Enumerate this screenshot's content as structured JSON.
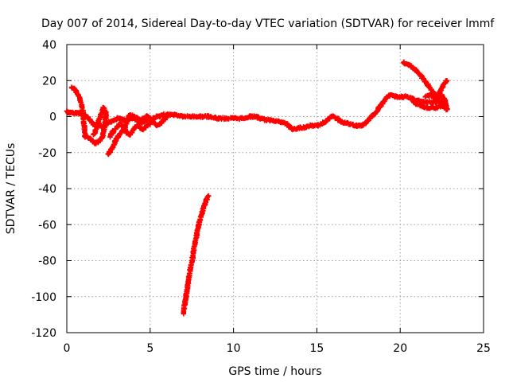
{
  "chart_data": {
    "type": "scatter",
    "title": "Day 007 of 2014, Sidereal Day-to-day VTEC variation (SDTVAR) for receiver lmmf",
    "xlabel": "GPS time / hours",
    "ylabel": "SDTVAR / TECUs",
    "xlim": [
      0,
      25
    ],
    "ylim": [
      -120,
      40
    ],
    "xticks": [
      "0",
      "5",
      "10",
      "15",
      "20",
      "25"
    ],
    "yticks": [
      "40",
      "20",
      "0",
      "-20",
      "-40",
      "-60",
      "-80",
      "-100",
      "-120"
    ],
    "grid": true,
    "marker": "plus",
    "color": "#ff0000",
    "series": [
      {
        "name": "main-trace",
        "points": [
          [
            0.0,
            3
          ],
          [
            0.2,
            2
          ],
          [
            0.4,
            2
          ],
          [
            0.6,
            2
          ],
          [
            0.8,
            2
          ],
          [
            1.0,
            1
          ],
          [
            1.2,
            0
          ],
          [
            1.4,
            -2
          ],
          [
            1.6,
            -4
          ],
          [
            1.8,
            -5
          ],
          [
            2.0,
            -5
          ],
          [
            2.2,
            -6
          ],
          [
            2.4,
            -4
          ],
          [
            2.6,
            -3
          ],
          [
            2.8,
            -2
          ],
          [
            3.0,
            -1
          ],
          [
            3.2,
            -1
          ],
          [
            3.4,
            -2
          ],
          [
            3.6,
            -2
          ],
          [
            3.8,
            -1
          ],
          [
            4.0,
            -1
          ],
          [
            4.2,
            -2
          ],
          [
            4.4,
            -3
          ],
          [
            4.6,
            -3
          ],
          [
            4.8,
            -2
          ],
          [
            5.0,
            -2
          ],
          [
            5.2,
            -1
          ],
          [
            5.4,
            0
          ],
          [
            5.6,
            0
          ],
          [
            5.8,
            1
          ],
          [
            6.0,
            1
          ],
          [
            6.2,
            1
          ],
          [
            6.5,
            1
          ],
          [
            7.0,
            0
          ],
          [
            7.5,
            0
          ],
          [
            8.0,
            0
          ],
          [
            8.5,
            0
          ],
          [
            9.0,
            -1
          ],
          [
            9.5,
            -1
          ],
          [
            10.0,
            -1
          ],
          [
            10.5,
            -1
          ],
          [
            11.0,
            0
          ],
          [
            11.3,
            0
          ],
          [
            11.6,
            -1
          ],
          [
            12.0,
            -2
          ],
          [
            12.4,
            -2
          ],
          [
            12.8,
            -3
          ],
          [
            13.2,
            -4
          ],
          [
            13.5,
            -7
          ],
          [
            13.8,
            -7
          ],
          [
            14.0,
            -6
          ],
          [
            14.3,
            -6
          ],
          [
            14.6,
            -5
          ],
          [
            15.0,
            -5
          ],
          [
            15.3,
            -4
          ],
          [
            15.6,
            -2
          ],
          [
            15.9,
            0
          ],
          [
            16.2,
            -1
          ],
          [
            16.5,
            -3
          ],
          [
            16.9,
            -4
          ],
          [
            17.3,
            -5
          ],
          [
            17.7,
            -5
          ],
          [
            18.0,
            -3
          ],
          [
            18.3,
            0
          ],
          [
            18.6,
            3
          ],
          [
            18.9,
            7
          ],
          [
            19.2,
            11
          ],
          [
            19.5,
            12
          ],
          [
            19.8,
            11
          ],
          [
            20.1,
            11
          ],
          [
            20.4,
            11
          ],
          [
            20.7,
            10
          ],
          [
            21.0,
            9
          ],
          [
            21.3,
            8
          ],
          [
            21.6,
            8
          ],
          [
            21.9,
            8
          ],
          [
            22.2,
            8
          ],
          [
            22.5,
            8
          ],
          [
            22.7,
            7
          ]
        ]
      },
      {
        "name": "early-loop-a",
        "points": [
          [
            0.3,
            16
          ],
          [
            0.5,
            15
          ],
          [
            0.7,
            12
          ],
          [
            0.9,
            6
          ],
          [
            1.0,
            0
          ],
          [
            1.05,
            -6
          ],
          [
            1.1,
            -11
          ],
          [
            1.3,
            -12
          ],
          [
            1.5,
            -13
          ],
          [
            1.7,
            -15
          ],
          [
            1.9,
            -14
          ],
          [
            2.1,
            -12
          ],
          [
            2.2,
            -9
          ],
          [
            2.3,
            -4
          ],
          [
            2.35,
            2
          ],
          [
            2.2,
            5
          ],
          [
            2.0,
            0
          ],
          [
            1.8,
            -6
          ],
          [
            1.6,
            -10
          ]
        ]
      },
      {
        "name": "early-loop-b",
        "points": [
          [
            2.5,
            -21
          ],
          [
            2.7,
            -18
          ],
          [
            2.9,
            -14
          ],
          [
            3.1,
            -11
          ],
          [
            3.3,
            -8
          ],
          [
            3.5,
            -6
          ],
          [
            3.6,
            -3
          ],
          [
            3.7,
            0
          ],
          [
            3.8,
            1
          ],
          [
            4.0,
            0
          ],
          [
            4.2,
            -1
          ],
          [
            4.4,
            -2
          ],
          [
            4.6,
            -1
          ],
          [
            4.8,
            0
          ],
          [
            5.0,
            -1
          ],
          [
            5.2,
            -3
          ],
          [
            5.4,
            -5
          ],
          [
            5.6,
            -4
          ],
          [
            5.8,
            -2
          ],
          [
            6.0,
            0
          ]
        ]
      },
      {
        "name": "early-loop-c",
        "points": [
          [
            2.6,
            -11
          ],
          [
            2.8,
            -8
          ],
          [
            3.0,
            -6
          ],
          [
            3.2,
            -4
          ],
          [
            3.4,
            -6
          ],
          [
            3.6,
            -9
          ],
          [
            3.8,
            -10
          ],
          [
            4.0,
            -7
          ],
          [
            4.2,
            -5
          ],
          [
            4.4,
            -6
          ],
          [
            4.6,
            -7
          ],
          [
            4.8,
            -5
          ],
          [
            5.0,
            -4
          ]
        ]
      },
      {
        "name": "late-trace",
        "points": [
          [
            20.2,
            30
          ],
          [
            20.5,
            29
          ],
          [
            20.8,
            27
          ],
          [
            21.1,
            24
          ],
          [
            21.4,
            21
          ],
          [
            21.7,
            17
          ],
          [
            22.0,
            13
          ],
          [
            22.2,
            11
          ],
          [
            22.4,
            14
          ],
          [
            22.6,
            18
          ],
          [
            22.8,
            20
          ]
        ]
      },
      {
        "name": "late-lower",
        "points": [
          [
            20.8,
            8
          ],
          [
            21.0,
            7
          ],
          [
            21.3,
            6
          ],
          [
            21.6,
            5
          ],
          [
            21.9,
            5
          ],
          [
            22.2,
            5
          ],
          [
            22.5,
            6
          ],
          [
            22.8,
            4
          ],
          [
            22.7,
            9
          ],
          [
            22.5,
            12
          ],
          [
            22.3,
            10
          ],
          [
            22.0,
            11
          ],
          [
            21.8,
            12
          ],
          [
            21.5,
            11
          ]
        ]
      },
      {
        "name": "dropout-segment",
        "points": [
          [
            7.0,
            -109
          ],
          [
            7.1,
            -103
          ],
          [
            7.2,
            -97
          ],
          [
            7.3,
            -91
          ],
          [
            7.4,
            -85
          ],
          [
            7.5,
            -80
          ],
          [
            7.6,
            -75
          ],
          [
            7.7,
            -70
          ],
          [
            7.8,
            -65
          ],
          [
            7.9,
            -61
          ],
          [
            8.0,
            -57
          ],
          [
            8.1,
            -54
          ],
          [
            8.2,
            -51
          ],
          [
            8.3,
            -48
          ],
          [
            8.4,
            -46
          ],
          [
            8.5,
            -44
          ]
        ]
      }
    ]
  }
}
